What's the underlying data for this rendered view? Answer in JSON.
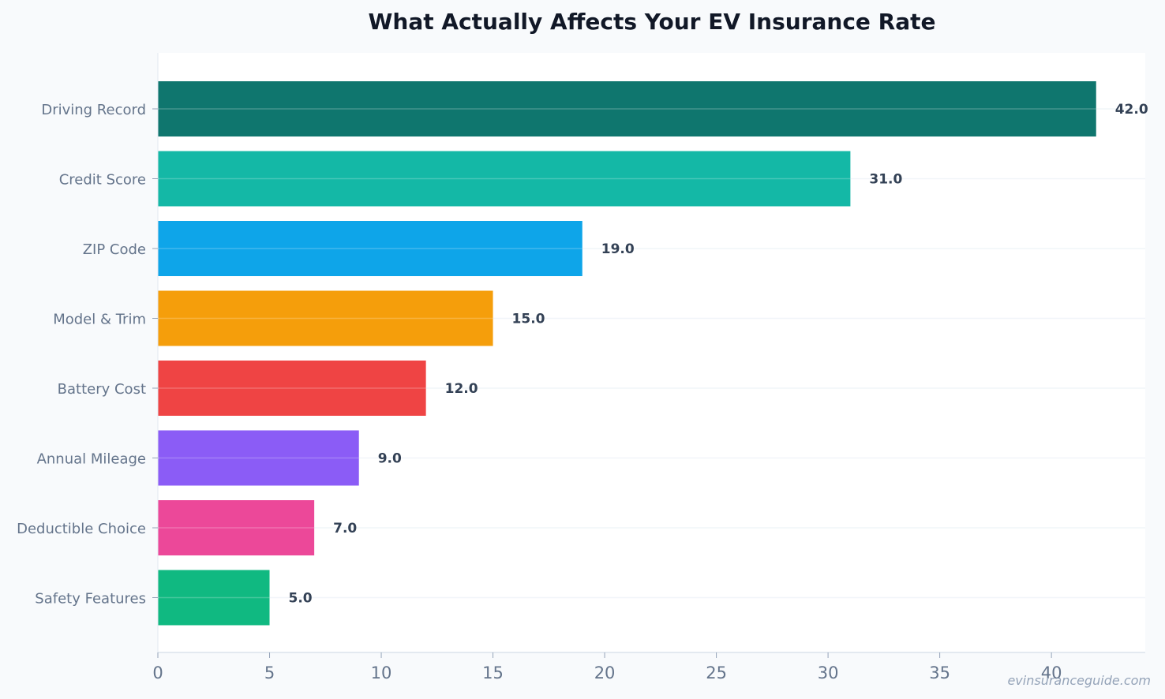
{
  "chart_data": {
    "type": "bar",
    "orientation": "horizontal",
    "title": "What Actually Affects Your EV Insurance Rate",
    "xlabel": "",
    "ylabel": "",
    "categories": [
      "Driving Record",
      "Credit Score",
      "ZIP Code",
      "Model & Trim",
      "Battery Cost",
      "Annual Mileage",
      "Deductible Choice",
      "Safety Features"
    ],
    "values": [
      42.0,
      31.0,
      19.0,
      15.0,
      12.0,
      9.0,
      7.0,
      5.0
    ],
    "value_labels": [
      "42.0",
      "31.0",
      "19.0",
      "15.0",
      "12.0",
      "9.0",
      "7.0",
      "5.0"
    ],
    "colors": [
      "#0f766e",
      "#14b8a6",
      "#0ea5e9",
      "#f59e0b",
      "#ef4444",
      "#8b5cf6",
      "#ec4899",
      "#10b981"
    ],
    "xlim": [
      0,
      44.2
    ],
    "xticks": [
      0,
      5,
      10,
      15,
      20,
      25,
      30,
      35,
      40
    ],
    "grid": true,
    "legend": "none"
  },
  "watermark": "evinsuranceguide.com"
}
